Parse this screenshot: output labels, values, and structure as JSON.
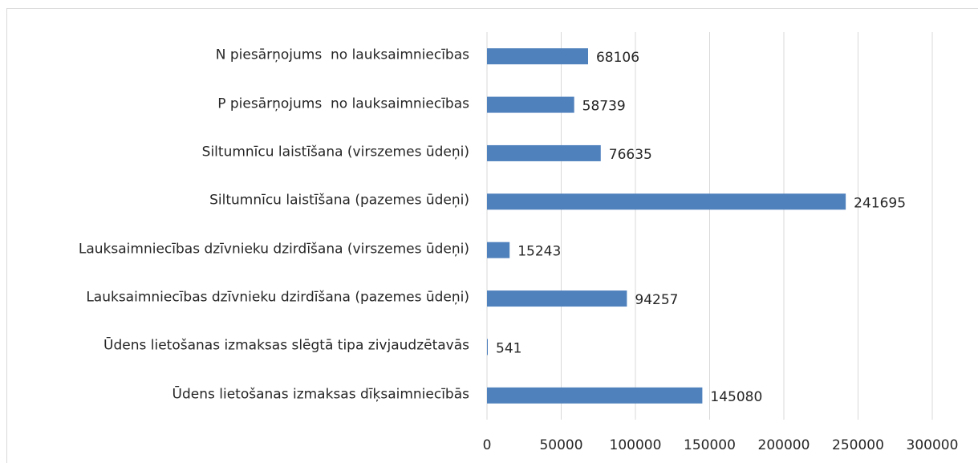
{
  "chart_data": {
    "type": "bar",
    "orientation": "horizontal",
    "categories": [
      "N piesārņojums  no lauksaimniecības",
      "P piesārņojums  no lauksaimniecības",
      "Siltumnīcu laistīšana (virszemes ūdeņi)",
      "Siltumnīcu laistīšana (pazemes ūdeņi)",
      "Lauksaimniecības dzīvnieku dzirdīšana (virszemes ūdeņi)",
      "Lauksaimniecības dzīvnieku dzirdīšana (pazemes ūdeņi)",
      "Ūdens lietošanas izmaksas slēgtā tipa zivjaudzētavās",
      "Ūdens lietošanas izmaksas dīķsaimniecībās"
    ],
    "values": [
      68106,
      58739,
      76635,
      241695,
      15243,
      94257,
      541,
      145080
    ],
    "color": "#4f81bd",
    "xlim": [
      0,
      300000
    ],
    "xticks": [
      0,
      50000,
      100000,
      150000,
      200000,
      250000,
      300000
    ],
    "grid": true
  }
}
